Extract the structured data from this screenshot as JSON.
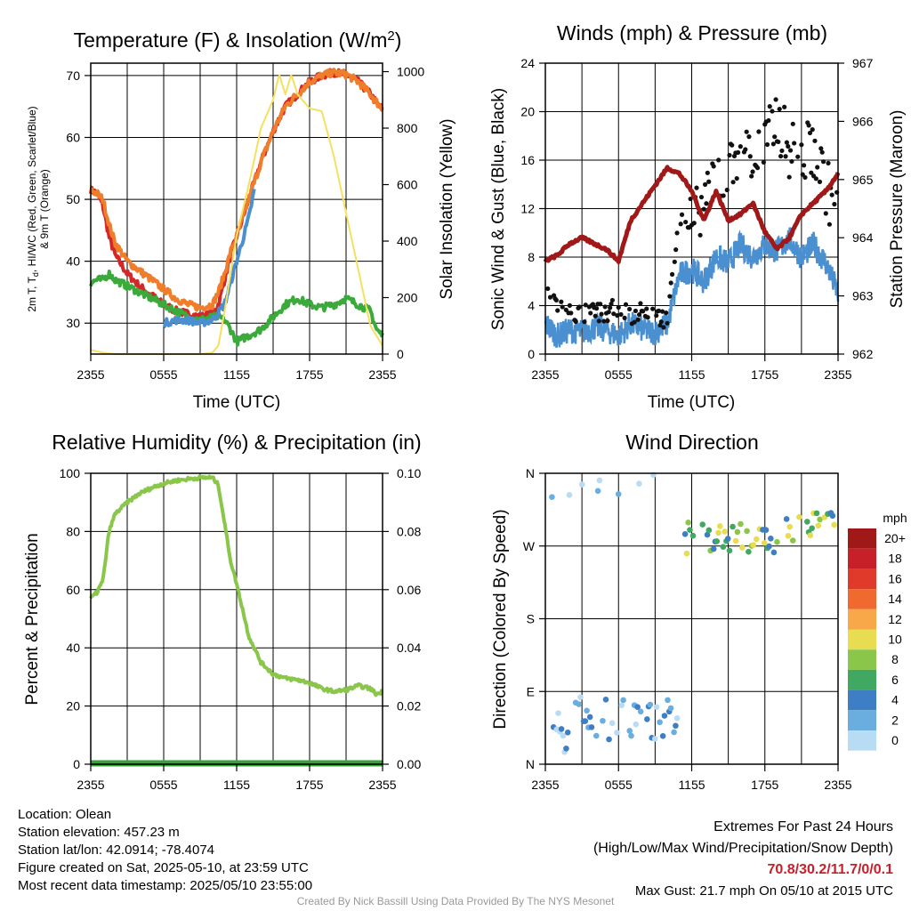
{
  "chart_data": [
    {
      "type": "line",
      "title": "Temperature (F) & Insolation (W/m",
      "title_sup": "2",
      "title_end": ")",
      "xlabel": "Time (UTC)",
      "ylabel_line1": "2m T, T",
      "ylabel_sub": "d",
      "ylabel_line1_rest": ", HI/WC (Red, Green, Scarlet/Blue)",
      "ylabel_line2": "& 9m T (Orange)",
      "ylabel_right": "Solar Insolation (Yellow)",
      "xticks": [
        "2355",
        "0555",
        "1155",
        "1755",
        "2355"
      ],
      "ylim": [
        25,
        72
      ],
      "yticks": [
        30,
        40,
        50,
        60,
        70
      ],
      "y2lim": [
        0,
        1030
      ],
      "y2ticks": [
        0,
        200,
        400,
        600,
        800,
        1000
      ],
      "colors": {
        "temp": "#d42728",
        "dew": "#3aaa3a",
        "hiwc": "#4a8fd0",
        "t9": "#f07d2a",
        "solar": "#f5e060"
      },
      "series": [
        {
          "key": "temp",
          "x": [
            0,
            0.5,
            1,
            1.5,
            2,
            3,
            4,
            5,
            6,
            7,
            8,
            9,
            10,
            10.5,
            11,
            11.5,
            12,
            13,
            14,
            15,
            15.5,
            16,
            16.5,
            17,
            18,
            19,
            20,
            21,
            22,
            23,
            23.5,
            24
          ],
          "values": [
            51.5,
            51,
            49,
            44,
            41,
            38,
            36,
            34.5,
            33,
            32,
            31.5,
            31,
            31.5,
            33,
            37,
            41,
            44,
            50,
            56,
            61,
            63,
            65,
            66,
            67,
            69,
            70,
            70.5,
            70.2,
            69,
            67,
            65.5,
            64.5
          ]
        },
        {
          "key": "t9",
          "x": [
            0,
            0.5,
            1,
            1.5,
            2,
            3,
            4,
            5,
            6,
            7,
            8,
            9,
            10,
            10.5,
            11,
            11.5,
            12,
            13,
            14,
            15,
            16,
            17,
            18,
            19,
            20,
            21,
            22,
            23,
            24
          ],
          "values": [
            51.5,
            51,
            50,
            46,
            43,
            40,
            38.5,
            37,
            35.5,
            34,
            33,
            32.5,
            33,
            35,
            38,
            41.5,
            44,
            50,
            56,
            61,
            65,
            67,
            69,
            70,
            70.5,
            70.2,
            69,
            67,
            64.5
          ]
        },
        {
          "key": "dew",
          "x": [
            0,
            0.5,
            1,
            1.5,
            2,
            3,
            4,
            5,
            6,
            7,
            8,
            9,
            10,
            10.5,
            11,
            11.5,
            12,
            12.5,
            13,
            14,
            15,
            16,
            17,
            18,
            19,
            20,
            21,
            22,
            23,
            23.5,
            24
          ],
          "values": [
            36.5,
            37,
            37,
            38,
            37,
            36,
            35,
            34,
            33,
            32,
            31,
            30.5,
            31,
            31,
            30.5,
            29,
            27,
            27.5,
            28,
            29,
            31,
            33,
            34,
            33,
            32.5,
            33,
            34,
            33,
            32,
            29,
            28
          ]
        },
        {
          "key": "hiwc",
          "x": [
            6,
            7,
            8,
            9,
            10,
            11,
            12,
            13,
            13.5
          ],
          "values": [
            30,
            30.5,
            30.5,
            30,
            30.5,
            33,
            40,
            47,
            52
          ]
        },
        {
          "key": "solar",
          "x": [
            0,
            1,
            2,
            3,
            4,
            5,
            6,
            7,
            8,
            9,
            10,
            10.5,
            11,
            12,
            13,
            14,
            15,
            15.5,
            16,
            16.5,
            17,
            18,
            19,
            20,
            21,
            22,
            23,
            24
          ],
          "values": [
            15,
            5,
            0,
            0,
            0,
            0,
            0,
            0,
            0,
            0,
            5,
            30,
            150,
            420,
            600,
            800,
            900,
            990,
            920,
            990,
            920,
            870,
            860,
            700,
            500,
            300,
            100,
            30
          ]
        }
      ]
    },
    {
      "type": "line",
      "title": "Winds (mph) & Pressure (mb)",
      "xlabel": "Time (UTC)",
      "ylabel": "Sonic Wind & Gust (Blue, Black)",
      "ylabel_right": "Station Pressure (Maroon)",
      "xticks": [
        "2355",
        "0555",
        "1155",
        "1755",
        "2355"
      ],
      "ylim": [
        0,
        24
      ],
      "yticks": [
        0,
        4,
        8,
        12,
        16,
        20,
        24
      ],
      "y2lim": [
        962,
        967
      ],
      "y2ticks": [
        962,
        963,
        964,
        965,
        966,
        967
      ],
      "colors": {
        "wind": "#4a8fd0",
        "gust": "#111111",
        "pressure": "#a01818"
      },
      "series": [
        {
          "key": "pressure",
          "x": [
            0,
            1,
            2,
            3,
            4,
            5,
            6,
            7,
            8,
            9,
            10,
            11,
            12,
            13,
            14,
            15,
            16,
            17,
            18,
            19,
            20,
            21,
            22,
            23,
            24
          ],
          "values": [
            963.6,
            963.7,
            963.9,
            964.0,
            963.9,
            963.8,
            963.6,
            964.3,
            964.6,
            964.9,
            965.2,
            965.1,
            964.8,
            964.3,
            964.8,
            964.3,
            964.4,
            964.6,
            964.1,
            963.8,
            964.0,
            964.4,
            964.6,
            964.8,
            965.1
          ]
        },
        {
          "key": "wind",
          "x": [
            0,
            1,
            2,
            3,
            4,
            5,
            6,
            7,
            8,
            9,
            10,
            11,
            12,
            13,
            14,
            15,
            16,
            17,
            18,
            19,
            20,
            21,
            22,
            23,
            24
          ],
          "values": [
            2.5,
            1.5,
            2.0,
            1.8,
            2.2,
            2.0,
            1.5,
            2.5,
            2.0,
            1.8,
            2.5,
            6.5,
            7.0,
            6.0,
            8.0,
            7.5,
            9.0,
            8.0,
            9.0,
            8.5,
            9.5,
            8.0,
            9.0,
            7.5,
            5.0
          ]
        },
        {
          "key": "gust",
          "x": [
            0,
            1,
            2,
            3,
            4,
            5,
            6,
            7,
            8,
            9,
            10,
            11,
            12,
            13,
            14,
            15,
            16,
            17,
            18,
            19,
            20,
            21,
            22,
            23,
            24
          ],
          "values": [
            6,
            4,
            3.5,
            3.2,
            3.5,
            3.3,
            4.0,
            3.2,
            3.5,
            3.0,
            3.0,
            12,
            10.5,
            13,
            15,
            14.5,
            18,
            16,
            17,
            19.5,
            17,
            16.5,
            17,
            14,
            11
          ]
        }
      ]
    },
    {
      "type": "line",
      "title": "Relative Humidity (%) & Precipitation (in)",
      "ylabel": "Percent & Precipitation",
      "xticks": [
        "2355",
        "0555",
        "1155",
        "1755",
        "2355"
      ],
      "ylim": [
        0,
        100
      ],
      "yticks": [
        0,
        20,
        40,
        60,
        80,
        100
      ],
      "y2lim": [
        0,
        0.1
      ],
      "y2ticks": [
        "0.00",
        "0.02",
        "0.04",
        "0.06",
        "0.08",
        "0.10"
      ],
      "colors": {
        "rh": "#8ac64a",
        "precip": "#3aa03a"
      },
      "series": [
        {
          "key": "rh",
          "x": [
            0,
            0.5,
            1,
            1.5,
            2,
            3,
            4,
            5,
            6,
            7,
            8,
            9,
            10,
            10.5,
            11,
            11.5,
            12,
            13,
            14,
            15,
            16,
            17,
            18,
            19,
            20,
            21,
            22,
            23,
            23.5,
            24
          ],
          "values": [
            57,
            59,
            63,
            80,
            86,
            90,
            93,
            95,
            96.5,
            97.5,
            98,
            98.5,
            98.5,
            96,
            83,
            70,
            62,
            44,
            35,
            31,
            29.5,
            29,
            28,
            26,
            25,
            25.5,
            27,
            26,
            24,
            25
          ]
        },
        {
          "key": "precip",
          "x": [
            0,
            24
          ],
          "values": [
            0,
            0
          ]
        }
      ]
    },
    {
      "type": "scatter",
      "title": "Wind Direction",
      "ylabel": "Direction (Colored By Speed)",
      "xticks": [
        "2355",
        "0555",
        "1155",
        "1755",
        "2355"
      ],
      "ylim": [
        0,
        360
      ],
      "yticks": [
        0,
        90,
        180,
        270,
        360
      ],
      "yticklabels": [
        "N",
        "E",
        "S",
        "W",
        "N"
      ],
      "legend_title": "mph",
      "legend_labels": [
        "20+",
        "18",
        "16",
        "14",
        "12",
        "10",
        "8",
        "6",
        "4",
        "2",
        "0"
      ],
      "legend_colors": [
        "#a01818",
        "#c82028",
        "#e03a2a",
        "#f06a30",
        "#f8a848",
        "#e8dc50",
        "#8ac64a",
        "#40a860",
        "#3e7ec4",
        "#6aaee0",
        "#b8dcf4"
      ]
    }
  ],
  "footer": {
    "location": "Location: Olean",
    "elevation": "Station elevation: 457.23 m",
    "latlon": "Station lat/lon: 42.0914; -78.4074",
    "created": "Figure created on Sat, 2025-05-10, at 23:59 UTC",
    "recent": "Most recent data timestamp: 2025/05/10 23:55:00",
    "extremes_title": "Extremes For Past 24 Hours",
    "extremes_sub": "(High/Low/Max Wind/Precipitation/Snow Depth)",
    "extremes_values": "70.8/30.2/11.7/0/0.1",
    "max_gust": "Max Gust: 21.7 mph On 05/10 at 2015 UTC",
    "credit": "Created By Nick Bassill Using Data Provided By The NYS Mesonet"
  }
}
